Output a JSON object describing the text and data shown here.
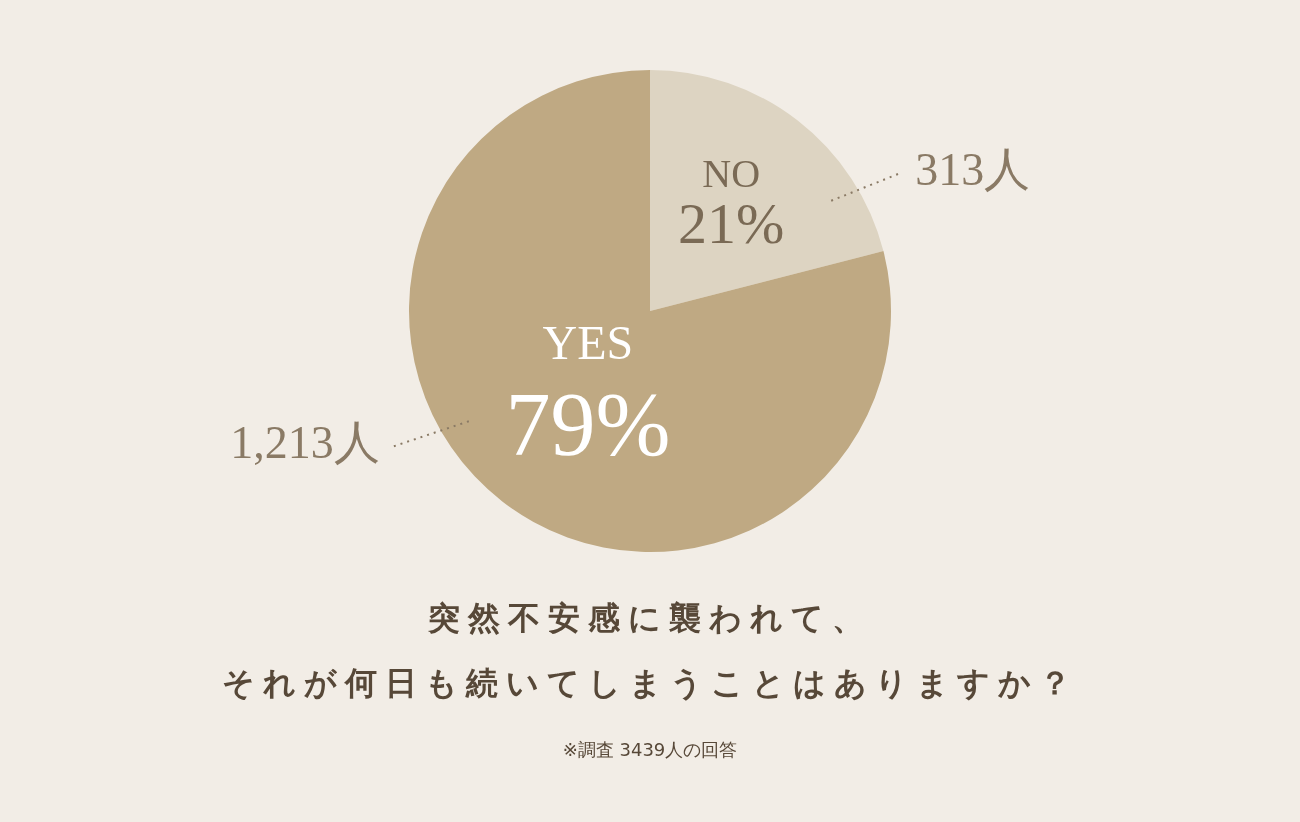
{
  "chart_data": {
    "type": "pie",
    "title": "突然不安感に襲われて、",
    "subtitle": "それが何日も続いてしまうことはありますか？",
    "categories": [
      "NO",
      "YES"
    ],
    "values": [
      21,
      79
    ],
    "colors": [
      "#ddd4c2",
      "#bfa983"
    ],
    "value_labels": [
      "21%",
      "79%"
    ],
    "legend": false,
    "annotations": [
      {
        "text": "313人",
        "x": "NO"
      },
      {
        "text": "1,213人",
        "x": "YES"
      },
      "※調査 3439人の回答"
    ]
  }
}
